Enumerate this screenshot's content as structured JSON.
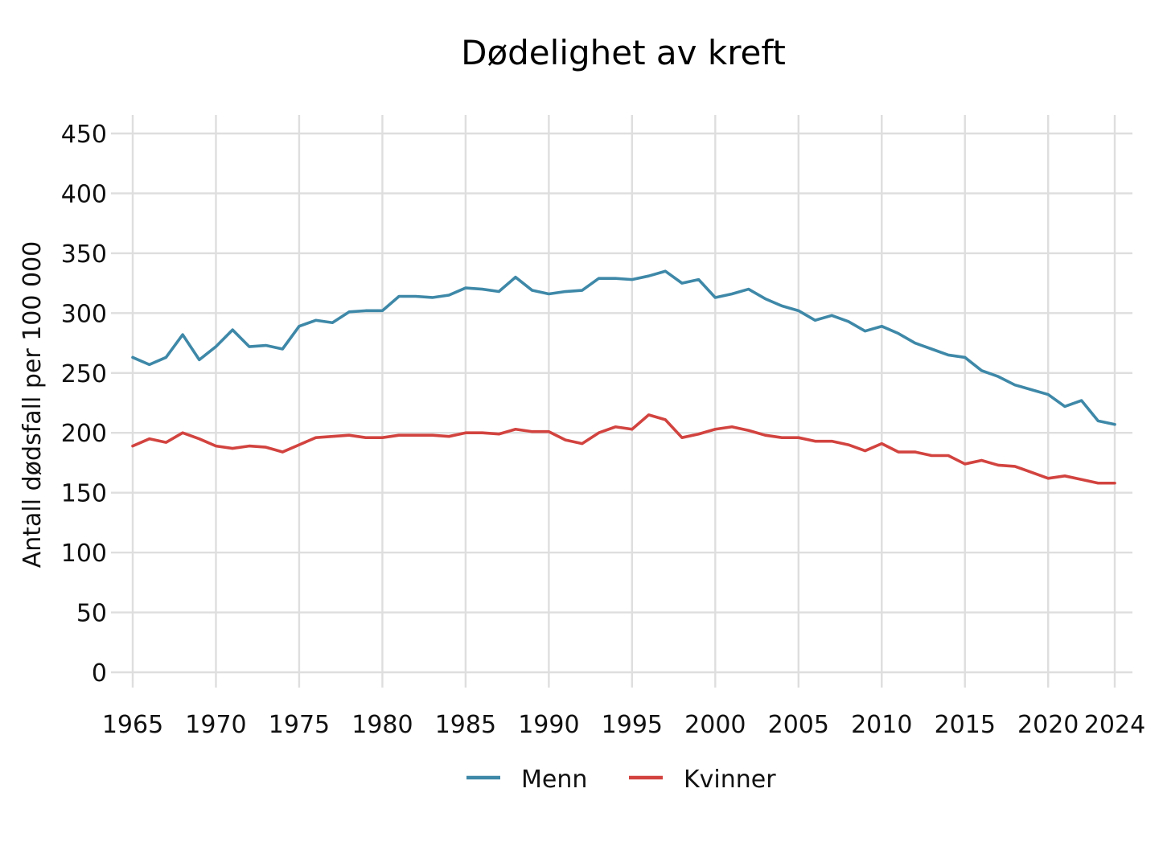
{
  "chart_data": {
    "type": "line",
    "title": "Dødelighet av kreft",
    "ylabel": "Antall dødsfall per 100 000",
    "xlabel": "",
    "xlim": [
      1965,
      2024
    ],
    "ylim": [
      0,
      450
    ],
    "x_ticks": [
      1965,
      1970,
      1975,
      1980,
      1985,
      1990,
      1995,
      2000,
      2005,
      2010,
      2015,
      2020,
      2024
    ],
    "y_ticks": [
      0,
      50,
      100,
      150,
      200,
      250,
      300,
      350,
      400,
      450
    ],
    "grid": true,
    "legend_position": "bottom",
    "x": [
      1965,
      1966,
      1967,
      1968,
      1969,
      1970,
      1971,
      1972,
      1973,
      1974,
      1975,
      1976,
      1977,
      1978,
      1979,
      1980,
      1981,
      1982,
      1983,
      1984,
      1985,
      1986,
      1987,
      1988,
      1989,
      1990,
      1991,
      1992,
      1993,
      1994,
      1995,
      1996,
      1997,
      1998,
      1999,
      2000,
      2001,
      2002,
      2003,
      2004,
      2005,
      2006,
      2007,
      2008,
      2009,
      2010,
      2011,
      2012,
      2013,
      2014,
      2015,
      2016,
      2017,
      2018,
      2019,
      2020,
      2021,
      2022,
      2023,
      2024
    ],
    "series": [
      {
        "name": "Menn",
        "color": "#3e88a8",
        "values": [
          263,
          257,
          263,
          282,
          261,
          272,
          286,
          272,
          273,
          270,
          289,
          294,
          292,
          301,
          302,
          302,
          314,
          314,
          313,
          315,
          321,
          320,
          318,
          330,
          319,
          316,
          318,
          319,
          329,
          329,
          328,
          331,
          335,
          325,
          328,
          313,
          316,
          320,
          312,
          306,
          302,
          294,
          298,
          293,
          285,
          289,
          283,
          275,
          270,
          265,
          263,
          252,
          247,
          240,
          236,
          232,
          222,
          227,
          210,
          207
        ]
      },
      {
        "name": "Kvinner",
        "color": "#d2433f",
        "values": [
          189,
          195,
          192,
          200,
          195,
          189,
          187,
          189,
          188,
          184,
          190,
          196,
          197,
          198,
          196,
          196,
          198,
          198,
          198,
          197,
          200,
          200,
          199,
          203,
          201,
          201,
          194,
          191,
          200,
          205,
          203,
          215,
          211,
          196,
          199,
          203,
          205,
          202,
          198,
          196,
          196,
          193,
          193,
          190,
          185,
          191,
          184,
          184,
          181,
          181,
          174,
          177,
          173,
          172,
          167,
          162,
          164,
          161,
          158,
          158
        ]
      }
    ]
  }
}
